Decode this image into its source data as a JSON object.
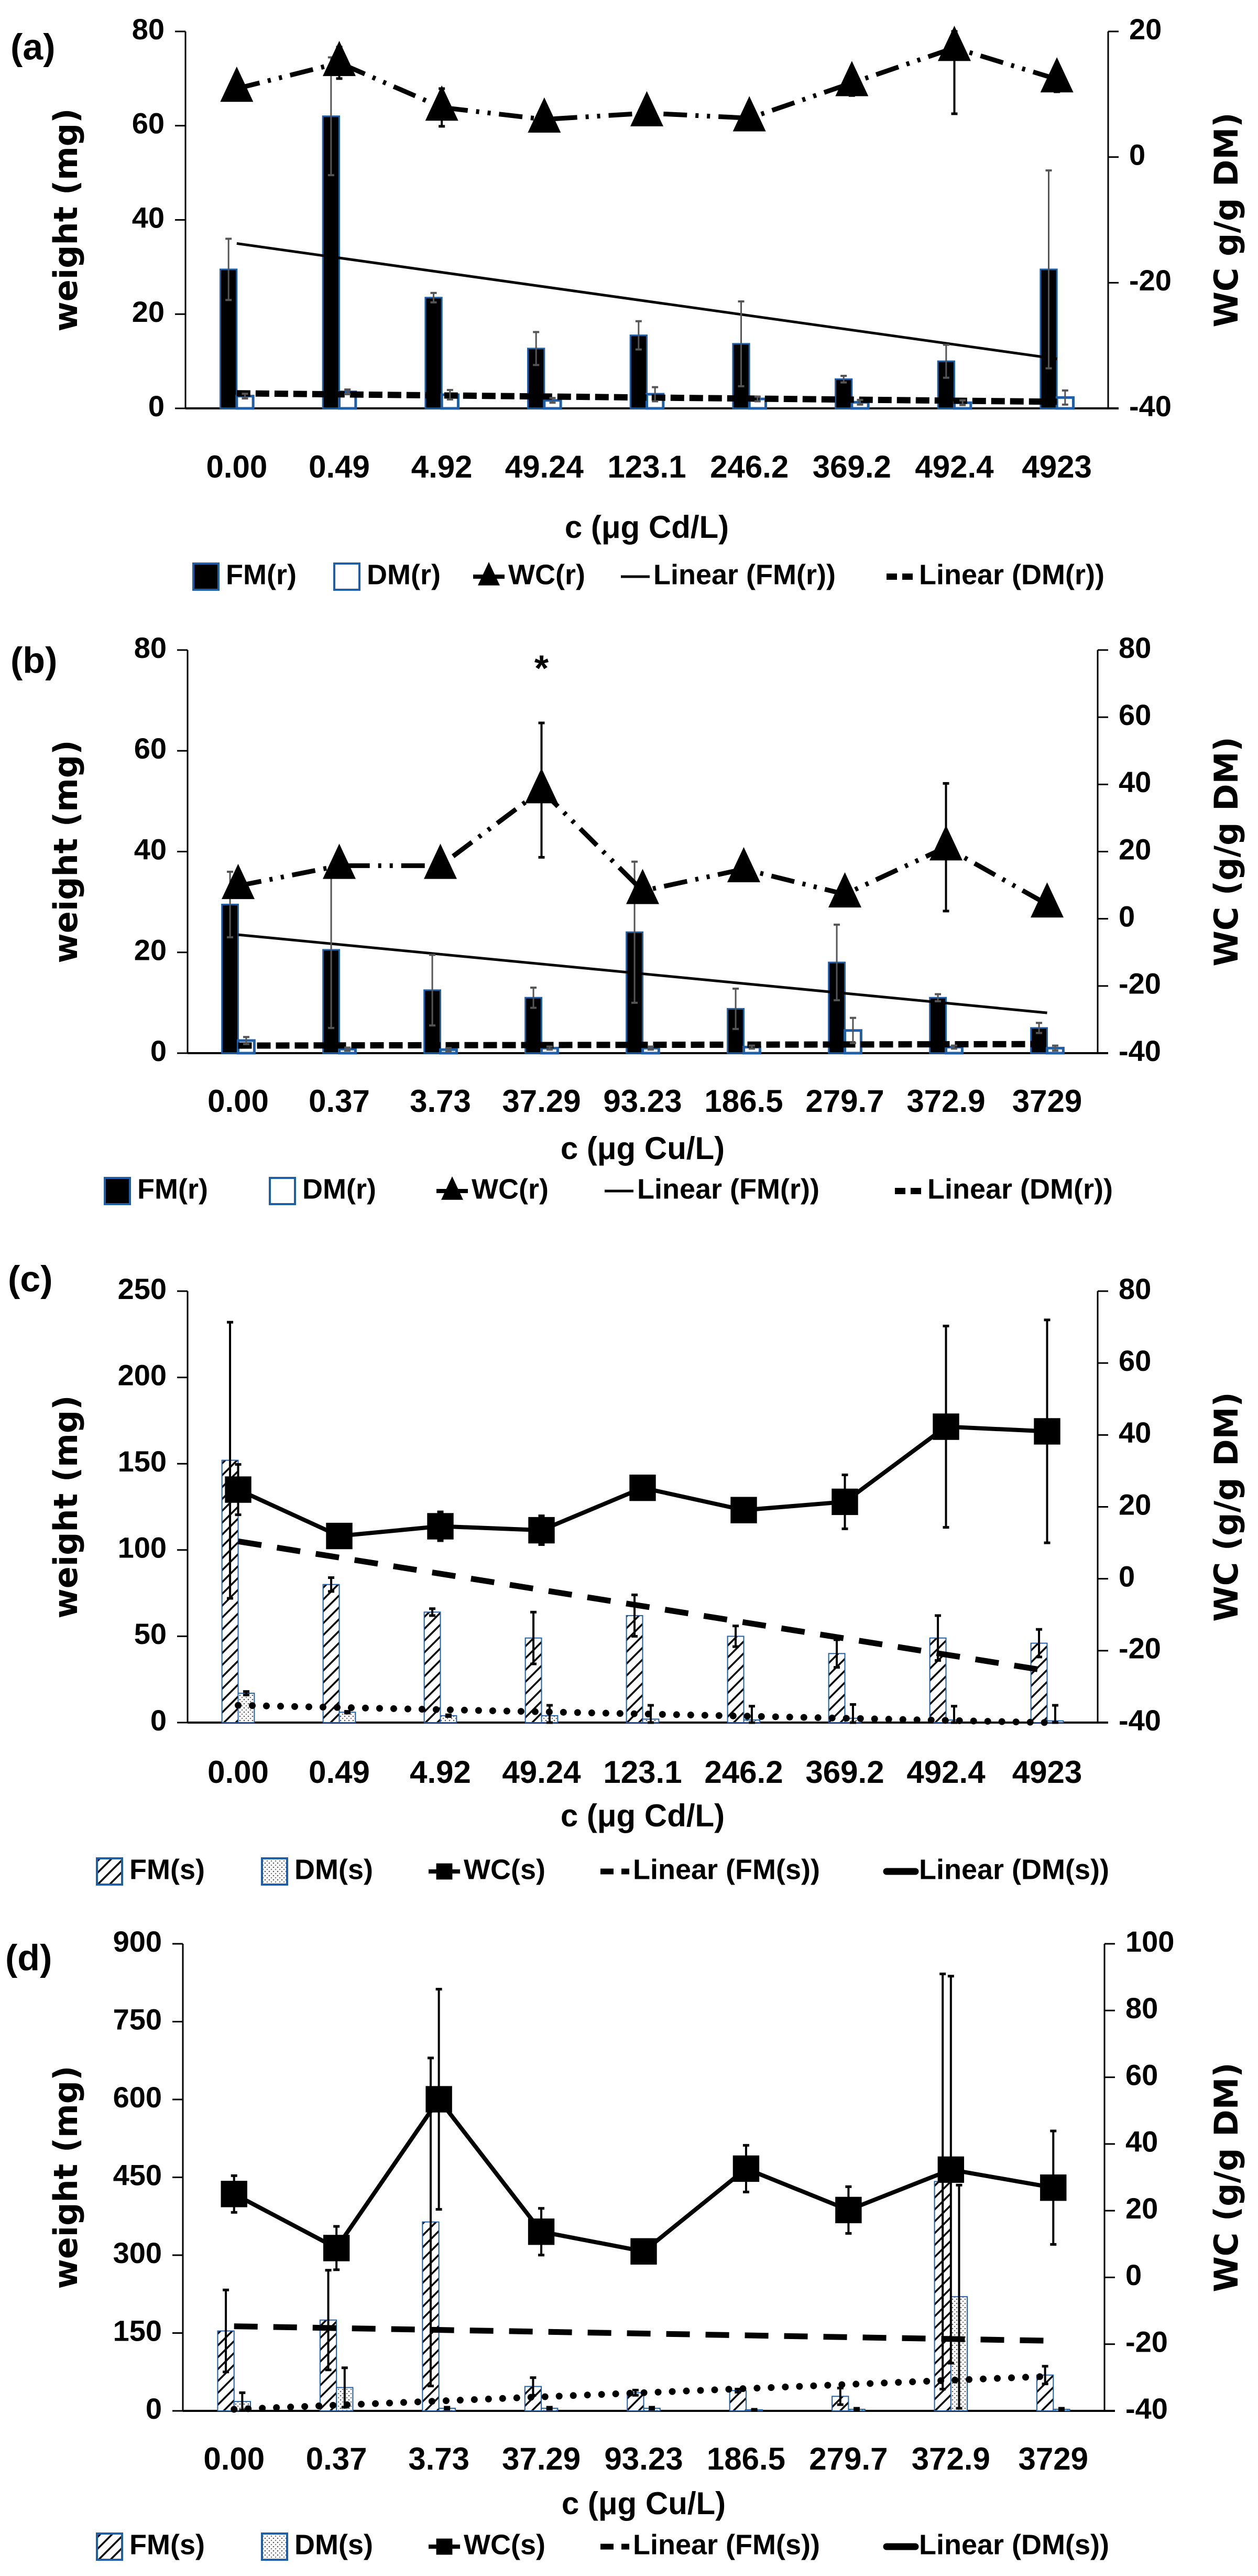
{
  "chart_data": [
    {
      "panel_label": "(a)",
      "type": "bar+line",
      "categories": [
        "0.00",
        "0.49",
        "4.92",
        "49.24",
        "123.1",
        "246.2",
        "369.2",
        "492.4",
        "4923"
      ],
      "xlabel": "c (μg Cd/L)",
      "ylabel": "weight (mg)",
      "ylabel_right": "WC g/g DM)",
      "ylim": [
        0,
        80
      ],
      "yticks": [
        0,
        20,
        40,
        60,
        80
      ],
      "ylim_right": [
        -40,
        20
      ],
      "yticks_right": [
        -40,
        -20,
        0,
        20
      ],
      "series": [
        {
          "name": "FM(r)",
          "kind": "bar",
          "style": "solid",
          "values": [
            29.5,
            62,
            23.5,
            12.7,
            15.5,
            13.7,
            6.2,
            10,
            29.5
          ],
          "errors": [
            6.5,
            12.5,
            1,
            3.5,
            3,
            9,
            0.7,
            3.5,
            21
          ]
        },
        {
          "name": "DM(r)",
          "kind": "bar",
          "style": "outline",
          "values": [
            2.6,
            3.5,
            2.9,
            1.7,
            3,
            2,
            1.3,
            1.2,
            2.3
          ],
          "errors": [
            0.5,
            0.5,
            1,
            0.5,
            1.5,
            0.5,
            0.5,
            0.5,
            1.5
          ]
        },
        {
          "name": "WC(r)",
          "kind": "line",
          "axis": "right",
          "marker": "triangle",
          "line": "dashdotdot",
          "values": [
            10.9,
            15,
            7.9,
            6,
            7,
            6.2,
            11.8,
            17.4,
            12.4
          ],
          "errors": [
            0,
            2.5,
            3,
            0,
            1,
            1,
            2,
            10.5,
            2
          ]
        }
      ],
      "trendlines": [
        {
          "name": "Linear (FM(r))",
          "start": 35,
          "end": 10.5,
          "style": "solid"
        },
        {
          "name": "Linear (DM(r))",
          "start": 3.2,
          "end": 1.4,
          "style": "dashed"
        }
      ],
      "annotations": []
    },
    {
      "panel_label": "(b)",
      "type": "bar+line",
      "categories": [
        "0.00",
        "0.37",
        "3.73",
        "37.29",
        "93.23",
        "186.5",
        "279.7",
        "372.9",
        "3729"
      ],
      "xlabel": "c (μg Cu/L)",
      "ylabel": "weight (mg)",
      "ylabel_right": "WC (g/g DM)",
      "ylim": [
        0,
        80
      ],
      "yticks": [
        0,
        20,
        40,
        60,
        80
      ],
      "ylim_right": [
        -40,
        80
      ],
      "yticks_right": [
        -40,
        -20,
        0,
        20,
        40,
        60,
        80
      ],
      "series": [
        {
          "name": "FM(r)",
          "kind": "bar",
          "style": "solid",
          "values": [
            29.5,
            20.5,
            12.5,
            11,
            24,
            8.8,
            18,
            11,
            5
          ],
          "errors": [
            6.5,
            15.5,
            7,
            2,
            14,
            4,
            7.5,
            0.7,
            1
          ]
        },
        {
          "name": "DM(r)",
          "kind": "bar",
          "style": "outline",
          "values": [
            2.5,
            0.8,
            0.7,
            1,
            1,
            1.2,
            4.5,
            1.2,
            1
          ],
          "errors": [
            0.7,
            0.3,
            0.3,
            0.3,
            0.3,
            0.3,
            2.5,
            0.3,
            0.5
          ]
        },
        {
          "name": "WC(r)",
          "kind": "line",
          "axis": "right",
          "marker": "triangle",
          "line": "dashdotdot",
          "values": [
            9.8,
            15.8,
            15.8,
            38.3,
            8.3,
            14.8,
            7.3,
            21.3,
            4.3
          ],
          "errors": [
            0,
            3,
            3,
            20,
            2,
            3.5,
            1,
            19,
            0
          ]
        }
      ],
      "trendlines": [
        {
          "name": "Linear (FM(r))",
          "start": 23.5,
          "end": 8,
          "style": "solid"
        },
        {
          "name": "Linear (DM(r))",
          "start": 1.5,
          "end": 1.8,
          "style": "dashed"
        }
      ],
      "annotations": [
        {
          "text": "*",
          "category_index": 3
        }
      ]
    },
    {
      "panel_label": "(c)",
      "type": "bar+line",
      "categories": [
        "0.00",
        "0.49",
        "4.92",
        "49.24",
        "123.1",
        "246.2",
        "369.2",
        "492.4",
        "4923"
      ],
      "xlabel": "c (μg Cd/L)",
      "ylabel": "weight (mg)",
      "ylabel_right": "WC (g/g DM)",
      "ylim": [
        0,
        250
      ],
      "yticks": [
        0,
        50,
        100,
        150,
        200,
        250
      ],
      "ylim_right": [
        -40,
        80
      ],
      "yticks_right": [
        -40,
        -20,
        0,
        20,
        40,
        60,
        80
      ],
      "series": [
        {
          "name": "FM(s)",
          "kind": "bar",
          "style": "hatch",
          "values": [
            152,
            80,
            64,
            49,
            62,
            50,
            40,
            49,
            46
          ],
          "errors": [
            80,
            4,
            2,
            15,
            12,
            6,
            8,
            13,
            8
          ]
        },
        {
          "name": "DM(s)",
          "kind": "bar",
          "style": "stipple",
          "values": [
            17,
            6,
            4,
            4,
            2,
            1.5,
            2.5,
            1.5,
            1
          ],
          "errors": [
            1,
            0.5,
            0.5,
            6,
            8,
            8,
            8,
            8,
            9
          ]
        },
        {
          "name": "WC(s)",
          "kind": "line",
          "axis": "right",
          "marker": "square",
          "line": "solid",
          "values": [
            24.8,
            11.9,
            14.6,
            13.5,
            25.3,
            19.1,
            21.4,
            42.3,
            41
          ],
          "errors": [
            7,
            2,
            4,
            4,
            1,
            3,
            7.5,
            28,
            31
          ]
        }
      ],
      "trendlines": [
        {
          "name": "Linear (FM(s))",
          "start": 105,
          "end": 30,
          "style": "longdash"
        },
        {
          "name": "Linear (DM(s))",
          "start": 10,
          "end": 0,
          "style": "dotted"
        }
      ],
      "annotations": []
    },
    {
      "panel_label": "(d)",
      "type": "bar+line",
      "categories": [
        "0.00",
        "0.37",
        "3.73",
        "37.29",
        "93.23",
        "186.5",
        "279.7",
        "372.9",
        "3729"
      ],
      "xlabel": "c (μg Cu/L)",
      "ylabel": "weight (mg)",
      "ylabel_right": "WC (g/g DM)",
      "ylim": [
        0,
        900
      ],
      "yticks": [
        0,
        150,
        300,
        450,
        600,
        750,
        900
      ],
      "ylim_right": [
        -40,
        100
      ],
      "yticks_right": [
        -40,
        -20,
        0,
        20,
        40,
        60,
        80,
        100
      ],
      "series": [
        {
          "name": "FM(s)",
          "kind": "bar",
          "style": "hatch",
          "values": [
            154,
            175,
            364,
            47,
            35,
            39,
            28,
            442,
            69
          ],
          "errors": [
            79,
            96,
            316,
            17,
            5,
            3,
            16,
            400,
            17
          ]
        },
        {
          "name": "DM(s)",
          "kind": "bar",
          "style": "stipple",
          "values": [
            18,
            45,
            5,
            5,
            5,
            2,
            3,
            220,
            3
          ],
          "errors": [
            17,
            38,
            2,
            2,
            2,
            1,
            2,
            215,
            2
          ]
        },
        {
          "name": "WC(s)",
          "kind": "line",
          "axis": "right",
          "marker": "square",
          "line": "solid",
          "values": [
            25,
            8.8,
            53.4,
            13.7,
            7.8,
            32.6,
            20.2,
            32.3,
            26.9
          ],
          "errors": [
            5.5,
            6.5,
            33,
            7,
            1,
            7,
            7,
            58,
            17
          ]
        }
      ],
      "trendlines": [
        {
          "name": "Linear (FM(s))",
          "start": 163,
          "end": 135,
          "style": "longdash"
        },
        {
          "name": "Linear (DM(s))",
          "start": 3,
          "end": 67,
          "style": "dotted"
        }
      ],
      "annotations": []
    }
  ],
  "colors": {
    "bar_edge": "#1f5fa8",
    "ink": "#000000",
    "error": "#555555"
  }
}
